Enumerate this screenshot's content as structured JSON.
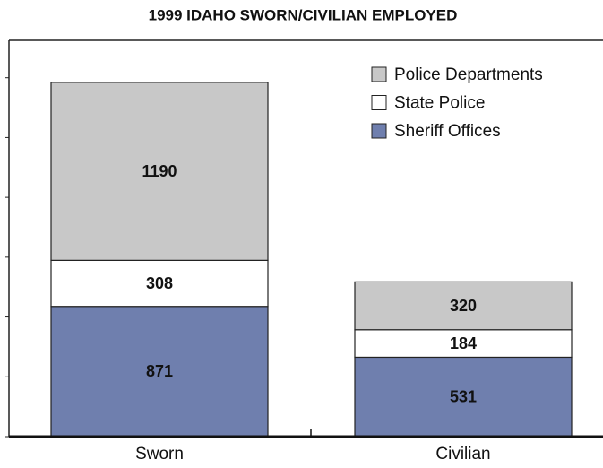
{
  "chart_data": {
    "type": "stacked_bar",
    "title": "1999 IDAHO SWORN/CIVILIAN EMPLOYED",
    "categories": [
      "Sworn",
      "Civilian"
    ],
    "series": [
      {
        "name": "Sheriff Offices",
        "color": "#6f7fae",
        "values": [
          871,
          531
        ]
      },
      {
        "name": "State Police",
        "color": "#ffffff",
        "values": [
          308,
          184
        ]
      },
      {
        "name": "Police Departments",
        "color": "#c8c8c8",
        "values": [
          1190,
          320
        ]
      }
    ],
    "ylim": [
      0,
      2650
    ],
    "yticks": [
      0,
      400,
      800,
      1200,
      1600,
      2000,
      2400
    ],
    "legend": "upper right"
  }
}
